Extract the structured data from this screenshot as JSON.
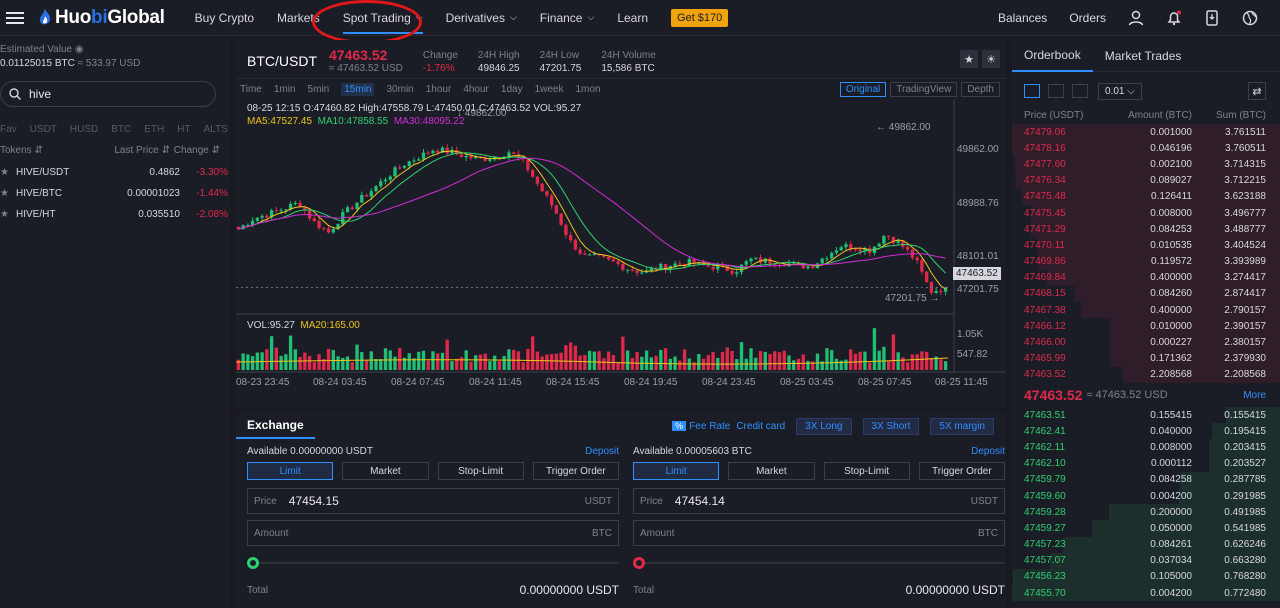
{
  "header": {
    "logo_prefix": "Huo",
    "logo_bi": "bi",
    "logo_suffix": " Global",
    "nav": [
      {
        "label": "Buy Crypto"
      },
      {
        "label": "Markets"
      },
      {
        "label": "Spot Trading"
      },
      {
        "label": "Derivatives"
      },
      {
        "label": "Finance"
      },
      {
        "label": "Learn"
      }
    ],
    "promo": "Get $170",
    "balances": "Balances",
    "orders": "Orders"
  },
  "left": {
    "estimated_label": "Estimated Value",
    "est_btc": "0.01125015 BTC",
    "est_usd": "≈ 533.97 USD",
    "search_value": "hive",
    "quote_tabs": [
      "Fav",
      "USDT",
      "HUSD",
      "BTC",
      "ETH",
      "HT",
      "ALTS"
    ],
    "col_tokens": "Tokens",
    "col_last": "Last Price",
    "col_change": "Change",
    "rows": [
      {
        "pair": "HIVE/USDT",
        "price": "0.4862",
        "change": "-3.30%"
      },
      {
        "pair": "HIVE/BTC",
        "price": "0.00001023",
        "change": "-1.44%"
      },
      {
        "pair": "HIVE/HT",
        "price": "0.035510",
        "change": "-2.08%"
      }
    ]
  },
  "ticker": {
    "symbol": "BTC/USDT",
    "last": "47463.52",
    "last_usd": "≈ 47463.52 USD",
    "change_label": "Change",
    "change": "-1.76%",
    "high_label": "24H High",
    "high": "49846.25",
    "low_label": "24H Low",
    "low": "47201.75",
    "vol_label": "24H Volume",
    "vol": "15,586 BTC"
  },
  "timeframes": [
    "Time",
    "1min",
    "5min",
    "15min",
    "30min",
    "1hour",
    "4hour",
    "1day",
    "1week",
    "1mon"
  ],
  "views": [
    "Original",
    "TradingView",
    "Depth"
  ],
  "chart_info": {
    "ohlc": "08-25 12:15   O:47460.82  High:47558.79  L:47450.01  C:47463.52  VOL:95.27",
    "ma5": "MA5:47527.45",
    "ma10": "MA10:47858.55",
    "ma30": "MA30:48095.22",
    "high_marker": "49862.00",
    "low_marker": "47201.75",
    "vol_info": "VOL:95.27",
    "vol_ma": "MA20:165.00",
    "price_ticks": [
      "49862.00",
      "48988.76",
      "48101.01",
      "47463.52",
      "47201.75"
    ],
    "vol_ticks": [
      "1.05K",
      "547.82"
    ],
    "time_ticks": [
      "08-23 23:45",
      "08-24 03:45",
      "08-24 07:45",
      "08-24 11:45",
      "08-24 15:45",
      "08-24 19:45",
      "08-24 23:45",
      "08-25 03:45",
      "08-25 07:45",
      "08-25 11:45"
    ]
  },
  "chart_data": {
    "type": "candlestick",
    "interval": "15min",
    "price_range": [
      47201.75,
      49862.0
    ],
    "last_price": 47463.52,
    "close_path": [
      48380,
      48550,
      48620,
      48700,
      48800,
      48500,
      48330,
      48620,
      48830,
      49020,
      49230,
      49400,
      49520,
      49640,
      49600,
      49530,
      49480,
      49520,
      49600,
      49420,
      49050,
      48700,
      48200,
      47950,
      47930,
      47850,
      47750,
      47700,
      47780,
      47830,
      47860,
      47800,
      47780,
      47720,
      47900,
      47880,
      47860,
      47820,
      47790,
      47950,
      48120,
      48100,
      48050,
      48300,
      48150,
      47900,
      47400,
      47463.52
    ],
    "colors": {
      "up": "#1fbf76",
      "down": "#e0294a",
      "ma5": "#f0c419",
      "ma10": "#2ed06f",
      "ma30": "#d12bd6"
    }
  },
  "orderbook": {
    "tabs": [
      "Orderbook",
      "Market Trades"
    ],
    "precision": "0.01",
    "col_price": "Price (USDT)",
    "col_amount": "Amount (BTC)",
    "col_sum": "Sum (BTC)",
    "asks": [
      [
        "47479.06",
        "0.001000",
        "3.761511"
      ],
      [
        "47478.16",
        "0.046196",
        "3.760511"
      ],
      [
        "47477.60",
        "0.002100",
        "3.714315"
      ],
      [
        "47476.34",
        "0.089027",
        "3.712215"
      ],
      [
        "47475.48",
        "0.126411",
        "3.623188"
      ],
      [
        "47475.45",
        "0.008000",
        "3.496777"
      ],
      [
        "47471.29",
        "0.084253",
        "3.488777"
      ],
      [
        "47470.11",
        "0.010535",
        "3.404524"
      ],
      [
        "47469.86",
        "0.119572",
        "3.393989"
      ],
      [
        "47469.84",
        "0.400000",
        "3.274417"
      ],
      [
        "47468.15",
        "0.084260",
        "2.874417"
      ],
      [
        "47467.38",
        "0.400000",
        "2.790157"
      ],
      [
        "47466.12",
        "0.010000",
        "2.390157"
      ],
      [
        "47466.00",
        "0.000227",
        "2.380157"
      ],
      [
        "47465.99",
        "0.171362",
        "2.379930"
      ],
      [
        "47463.52",
        "2.208568",
        "2.208568"
      ]
    ],
    "last": "47463.52",
    "last_eq": "≈ 47463.52 USD",
    "more": "More",
    "bids": [
      [
        "47463.51",
        "0.155415",
        "0.155415"
      ],
      [
        "47462.41",
        "0.040000",
        "0.195415"
      ],
      [
        "47462.11",
        "0.008000",
        "0.203415"
      ],
      [
        "47462.10",
        "0.000112",
        "0.203527"
      ],
      [
        "47459.79",
        "0.084258",
        "0.287785"
      ],
      [
        "47459.60",
        "0.004200",
        "0.291985"
      ],
      [
        "47459.28",
        "0.200000",
        "0.491985"
      ],
      [
        "47459.27",
        "0.050000",
        "0.541985"
      ],
      [
        "47457.23",
        "0.084261",
        "0.626246"
      ],
      [
        "47457.07",
        "0.037034",
        "0.663280"
      ],
      [
        "47456.23",
        "0.105000",
        "0.768280"
      ],
      [
        "47455.70",
        "0.004200",
        "0.772480"
      ]
    ]
  },
  "exchange": {
    "title": "Exchange",
    "fee_icon": "%",
    "fee_rate": "Fee Rate",
    "credit_card": "Credit card",
    "lev": [
      "3X Long",
      "3X Short",
      "5X margin"
    ],
    "buy": {
      "available": "Available  0.00000000 USDT",
      "deposit": "Deposit",
      "price": "47454.15",
      "price_unit": "USDT",
      "amount_unit": "BTC",
      "total": "0.00000000 USDT"
    },
    "sell": {
      "available": "Available  0.00005603 BTC",
      "deposit": "Deposit",
      "price": "47454.14",
      "price_unit": "USDT",
      "amount_unit": "BTC",
      "total": "0.00000000 USDT"
    },
    "types": [
      "Limit",
      "Market",
      "Stop-Limit",
      "Trigger Order"
    ],
    "price_label": "Price",
    "amount_label": "Amount",
    "total_label": "Total",
    "buy_color": "#2ed06f",
    "sell_color": "#e0294a"
  }
}
